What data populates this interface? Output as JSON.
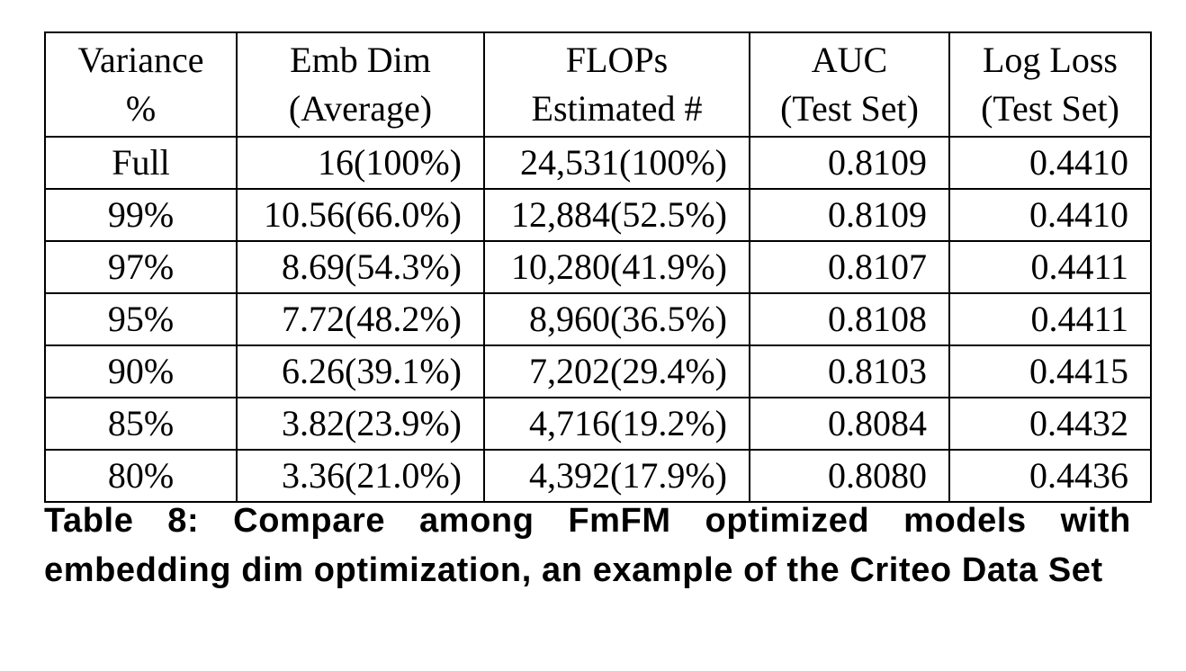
{
  "table": {
    "headers": [
      {
        "line1": "Variance",
        "line2": "%"
      },
      {
        "line1": "Emb Dim",
        "line2": "(Average)"
      },
      {
        "line1": "FLOPs",
        "line2": "Estimated #"
      },
      {
        "line1": "AUC",
        "line2": "(Test Set)"
      },
      {
        "line1": "Log Loss",
        "line2": "(Test Set)"
      }
    ],
    "rows": [
      {
        "variance": "Full",
        "emb_dim": "16(100%)",
        "flops": "24,531(100%)",
        "auc": "0.8109",
        "log_loss": "0.4410",
        "bold": false
      },
      {
        "variance": "99%",
        "emb_dim": "10.56(66.0%)",
        "flops": "12,884(52.5%)",
        "auc": "0.8109",
        "log_loss": "0.4410",
        "bold": false
      },
      {
        "variance": "97%",
        "emb_dim": "8.69(54.3%)",
        "flops": "10,280(41.9%)",
        "auc": "0.8107",
        "log_loss": "0.4411",
        "bold": false
      },
      {
        "variance": "95%",
        "emb_dim": "7.72(48.2%)",
        "flops": "8,960(36.5%)",
        "auc": "0.8108",
        "log_loss": "0.4411",
        "bold": true
      },
      {
        "variance": "90%",
        "emb_dim": "6.26(39.1%)",
        "flops": "7,202(29.4%)",
        "auc": "0.8103",
        "log_loss": "0.4415",
        "bold": false
      },
      {
        "variance": "85%",
        "emb_dim": "3.82(23.9%)",
        "flops": "4,716(19.2%)",
        "auc": "0.8084",
        "log_loss": "0.4432",
        "bold": false
      },
      {
        "variance": "80%",
        "emb_dim": "3.36(21.0%)",
        "flops": "4,392(17.9%)",
        "auc": "0.8080",
        "log_loss": "0.4436",
        "bold": false
      }
    ]
  },
  "caption": "Table 8: Compare among FmFM optimized models with embedding dim optimization, an example of the Criteo Data Set"
}
